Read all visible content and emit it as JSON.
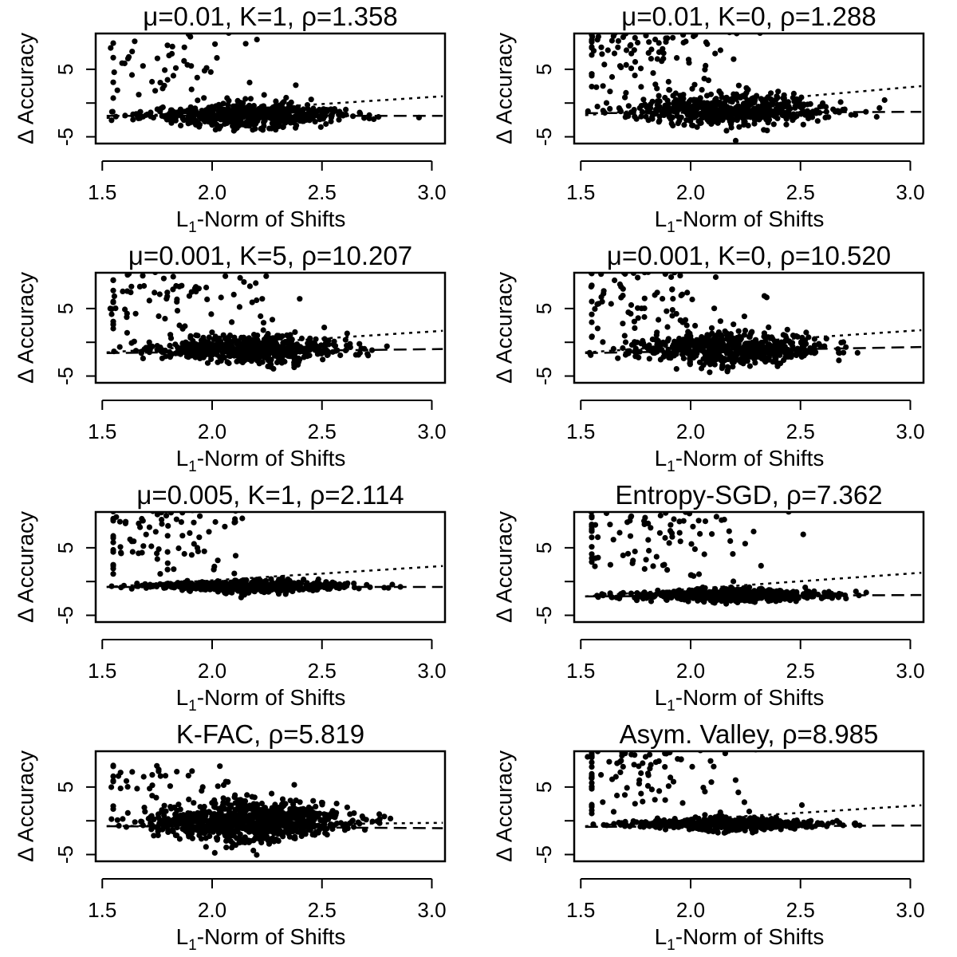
{
  "chart_data": [
    {
      "type": "scatter",
      "title": "μ=0.01, K=1, ρ=1.358",
      "xlabel": "L1-Norm of Shifts",
      "xlabel_main": "L",
      "xlabel_sub": "1",
      "xlabel_rest": "-Norm of Shifts",
      "ylabel": "Δ Accuracy",
      "xlim": [
        1.5,
        3.0
      ],
      "ylim": [
        -5,
        10
      ],
      "xticks": [
        "1.5",
        "2.0",
        "2.5",
        "3.0"
      ],
      "yticks": [
        "-5",
        "5"
      ],
      "xtick_values": [
        1.5,
        2.0,
        2.5,
        3.0
      ],
      "ytick_values": [
        -5,
        0,
        5
      ],
      "profile": {
        "center": -1.8,
        "spread": 0.7,
        "outlier_frac": 0.08,
        "outlier_max": 10,
        "count": 650,
        "seed": 11
      },
      "fits": [
        {
          "style": "dotted",
          "x": [
            1.52,
            3.05
          ],
          "y": [
            -2.2,
            1.0
          ]
        },
        {
          "style": "dashed",
          "x": [
            1.52,
            3.05
          ],
          "y": [
            -1.9,
            -1.9
          ]
        }
      ]
    },
    {
      "type": "scatter",
      "title": "μ=0.01, K=0, ρ=1.288",
      "xlabel": "L1-Norm of Shifts",
      "xlabel_main": "L",
      "xlabel_sub": "1",
      "xlabel_rest": "-Norm of Shifts",
      "ylabel": "Δ Accuracy",
      "xlim": [
        1.5,
        3.0
      ],
      "ylim": [
        -5,
        10
      ],
      "xticks": [
        "1.5",
        "2.0",
        "2.5",
        "3.0"
      ],
      "yticks": [
        "-5",
        "5"
      ],
      "xtick_values": [
        1.5,
        2.0,
        2.5,
        3.0
      ],
      "ytick_values": [
        -5,
        0,
        5
      ],
      "profile": {
        "center": -1.0,
        "spread": 0.9,
        "outlier_frac": 0.13,
        "outlier_max": 10,
        "count": 680,
        "seed": 23
      },
      "fits": [
        {
          "style": "dotted",
          "x": [
            1.52,
            3.05
          ],
          "y": [
            -1.8,
            2.5
          ]
        },
        {
          "style": "dashed",
          "x": [
            1.52,
            3.05
          ],
          "y": [
            -1.5,
            -1.3
          ]
        }
      ]
    },
    {
      "type": "scatter",
      "title": "μ=0.001, K=5, ρ=10.207",
      "xlabel": "L1-Norm of Shifts",
      "xlabel_main": "L",
      "xlabel_sub": "1",
      "xlabel_rest": "-Norm of Shifts",
      "ylabel": "Δ Accuracy",
      "xlim": [
        1.5,
        3.0
      ],
      "ylim": [
        -5,
        10
      ],
      "xticks": [
        "1.5",
        "2.0",
        "2.5",
        "3.0"
      ],
      "yticks": [
        "-5",
        "5"
      ],
      "xtick_values": [
        1.5,
        2.0,
        2.5,
        3.0
      ],
      "ytick_values": [
        -5,
        0,
        5
      ],
      "profile": {
        "center": -1.0,
        "spread": 0.8,
        "outlier_frac": 0.12,
        "outlier_max": 10,
        "count": 680,
        "seed": 37
      },
      "fits": [
        {
          "style": "dotted",
          "x": [
            1.52,
            3.05
          ],
          "y": [
            -1.5,
            1.7
          ]
        },
        {
          "style": "dashed",
          "x": [
            1.52,
            3.05
          ],
          "y": [
            -1.6,
            -1.0
          ]
        }
      ]
    },
    {
      "type": "scatter",
      "title": "μ=0.001, K=0, ρ=10.520",
      "xlabel": "L1-Norm of Shifts",
      "xlabel_main": "L",
      "xlabel_sub": "1",
      "xlabel_rest": "-Norm of Shifts",
      "ylabel": "Δ Accuracy",
      "xlim": [
        1.5,
        3.0
      ],
      "ylim": [
        -5,
        10
      ],
      "xticks": [
        "1.5",
        "2.0",
        "2.5",
        "3.0"
      ],
      "yticks": [
        "-5",
        "5"
      ],
      "xtick_values": [
        1.5,
        2.0,
        2.5,
        3.0
      ],
      "ytick_values": [
        -5,
        0,
        5
      ],
      "profile": {
        "center": -1.0,
        "spread": 1.0,
        "outlier_frac": 0.12,
        "outlier_max": 10,
        "count": 680,
        "seed": 41
      },
      "fits": [
        {
          "style": "dotted",
          "x": [
            1.52,
            3.05
          ],
          "y": [
            -1.5,
            1.8
          ]
        },
        {
          "style": "dashed",
          "x": [
            1.52,
            3.05
          ],
          "y": [
            -1.6,
            -0.7
          ]
        }
      ]
    },
    {
      "type": "scatter",
      "title": "μ=0.005, K=1, ρ=2.114",
      "xlabel": "L1-Norm of Shifts",
      "xlabel_main": "L",
      "xlabel_sub": "1",
      "xlabel_rest": "-Norm of Shifts",
      "ylabel": "Δ Accuracy",
      "xlim": [
        1.5,
        3.0
      ],
      "ylim": [
        -5,
        10
      ],
      "xticks": [
        "1.5",
        "2.0",
        "2.5",
        "3.0"
      ],
      "yticks": [
        "-5",
        "5"
      ],
      "xtick_values": [
        1.5,
        2.0,
        2.5,
        3.0
      ],
      "ytick_values": [
        -5,
        0,
        5
      ],
      "profile": {
        "center": -0.7,
        "spread": 0.35,
        "outlier_frac": 0.14,
        "outlier_max": 10,
        "count": 650,
        "seed": 53
      },
      "fits": [
        {
          "style": "dotted",
          "x": [
            1.52,
            3.05
          ],
          "y": [
            -0.8,
            2.3
          ]
        },
        {
          "style": "dashed",
          "x": [
            1.52,
            3.05
          ],
          "y": [
            -0.8,
            -0.8
          ]
        }
      ]
    },
    {
      "type": "scatter",
      "title": "Entropy-SGD, ρ=7.362",
      "xlabel": "L1-Norm of Shifts",
      "xlabel_main": "L",
      "xlabel_sub": "1",
      "xlabel_rest": "-Norm of Shifts",
      "ylabel": "Δ Accuracy",
      "xlim": [
        1.5,
        3.0
      ],
      "ylim": [
        -5,
        10
      ],
      "xticks": [
        "1.5",
        "2.0",
        "2.5",
        "3.0"
      ],
      "yticks": [
        "-5",
        "5"
      ],
      "xtick_values": [
        1.5,
        2.0,
        2.5,
        3.0
      ],
      "ytick_values": [
        -5,
        0,
        5
      ],
      "profile": {
        "center": -2.0,
        "spread": 0.35,
        "outlier_frac": 0.12,
        "outlier_max": 10,
        "count": 650,
        "seed": 67
      },
      "fits": [
        {
          "style": "dotted",
          "x": [
            1.52,
            3.05
          ],
          "y": [
            -2.2,
            1.3
          ]
        },
        {
          "style": "dashed",
          "x": [
            1.52,
            3.05
          ],
          "y": [
            -2.2,
            -2.0
          ]
        }
      ]
    },
    {
      "type": "scatter",
      "title": "K-FAC, ρ=5.819",
      "xlabel": "L1-Norm of Shifts",
      "xlabel_main": "L",
      "xlabel_sub": "1",
      "xlabel_rest": "-Norm of Shifts",
      "ylabel": "Δ Accuracy",
      "xlim": [
        1.5,
        3.0
      ],
      "ylim": [
        -5,
        10
      ],
      "xticks": [
        "1.5",
        "2.0",
        "2.5",
        "3.0"
      ],
      "yticks": [
        "-5",
        "5"
      ],
      "xtick_values": [
        1.5,
        2.0,
        2.5,
        3.0
      ],
      "ytick_values": [
        -5,
        0,
        5
      ],
      "profile": {
        "center": -0.2,
        "spread": 1.2,
        "outlier_frac": 0.04,
        "outlier_max": 7,
        "count": 900,
        "seed": 79
      },
      "fits": [
        {
          "style": "dotted",
          "x": [
            1.52,
            3.05
          ],
          "y": [
            -0.8,
            -0.3
          ]
        },
        {
          "style": "dashed",
          "x": [
            1.52,
            3.05
          ],
          "y": [
            -0.8,
            -1.1
          ]
        }
      ]
    },
    {
      "type": "scatter",
      "title": "Asym. Valley, ρ=8.985",
      "xlabel": "L1-Norm of Shifts",
      "xlabel_main": "L",
      "xlabel_sub": "1",
      "xlabel_rest": "-Norm of Shifts",
      "ylabel": "Δ Accuracy",
      "xlim": [
        1.5,
        3.0
      ],
      "ylim": [
        -5,
        10
      ],
      "xticks": [
        "1.5",
        "2.0",
        "2.5",
        "3.0"
      ],
      "yticks": [
        "-5",
        "5"
      ],
      "xtick_values": [
        1.5,
        2.0,
        2.5,
        3.0
      ],
      "ytick_values": [
        -5,
        0,
        5
      ],
      "profile": {
        "center": -0.5,
        "spread": 0.35,
        "outlier_frac": 0.14,
        "outlier_max": 10,
        "count": 650,
        "seed": 97
      },
      "fits": [
        {
          "style": "dotted",
          "x": [
            1.52,
            3.05
          ],
          "y": [
            -0.8,
            2.3
          ]
        },
        {
          "style": "dashed",
          "x": [
            1.52,
            3.05
          ],
          "y": [
            -0.9,
            -0.7
          ]
        }
      ]
    }
  ]
}
